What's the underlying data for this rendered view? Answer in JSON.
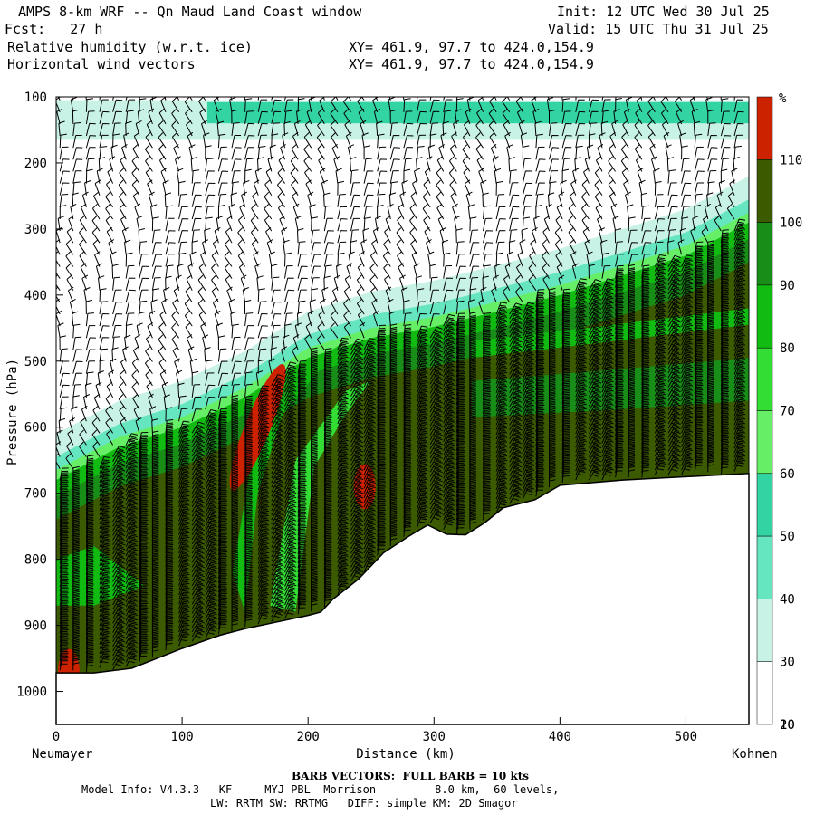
{
  "header": {
    "title": "AMPS 8-km WRF -- Qn Maud Land Coast window",
    "init": "Init: 12 UTC Wed 30 Jul 25",
    "fcst": "Fcst:   27 h",
    "valid": "Valid: 15 UTC Thu 31 Jul 25",
    "field1": "Relative humidity (w.r.t. ice)",
    "field2": "Horizontal wind vectors",
    "xy1": "XY= 461.9, 97.7 to 424.0,154.9",
    "xy2": "XY= 461.9, 97.7 to 424.0,154.9"
  },
  "chart_data": {
    "type": "heatmap",
    "xlabel": "Distance (km)",
    "ylabel": "Pressure (hPa)",
    "xlim": [
      0,
      550
    ],
    "ylim": [
      1050,
      100
    ],
    "x_ticks": [
      0,
      100,
      200,
      300,
      400,
      500
    ],
    "y_ticks": [
      100,
      200,
      300,
      400,
      500,
      600,
      700,
      800,
      900,
      1000
    ],
    "left_endpoint": "Neumayer",
    "right_endpoint": "Kohnen",
    "colorbar": {
      "unit": "%",
      "ticks": [
        10,
        20,
        30,
        40,
        50,
        60,
        70,
        80,
        90,
        100,
        110
      ],
      "bins": [
        {
          "from": 0,
          "to": 30,
          "color": "#ffffff"
        },
        {
          "from": 30,
          "to": 40,
          "color": "#c8f2e6"
        },
        {
          "from": 40,
          "to": 50,
          "color": "#66e6c0"
        },
        {
          "from": 50,
          "to": 60,
          "color": "#33d4a4"
        },
        {
          "from": 60,
          "to": 70,
          "color": "#66ee66"
        },
        {
          "from": 70,
          "to": 80,
          "color": "#33dd33"
        },
        {
          "from": 80,
          "to": 90,
          "color": "#11bb11"
        },
        {
          "from": 90,
          "to": 100,
          "color": "#188e18"
        },
        {
          "from": 100,
          "to": 110,
          "color": "#3c5a00"
        },
        {
          "from": 110,
          "to": 120,
          "color": "#cc2200"
        }
      ]
    },
    "terrain_surface_hPa": [
      {
        "x": 0,
        "p": 972
      },
      {
        "x": 30,
        "p": 972
      },
      {
        "x": 60,
        "p": 965
      },
      {
        "x": 100,
        "p": 935
      },
      {
        "x": 130,
        "p": 915
      },
      {
        "x": 150,
        "p": 905
      },
      {
        "x": 175,
        "p": 895
      },
      {
        "x": 200,
        "p": 885
      },
      {
        "x": 210,
        "p": 880
      },
      {
        "x": 220,
        "p": 860
      },
      {
        "x": 240,
        "p": 830
      },
      {
        "x": 260,
        "p": 790
      },
      {
        "x": 280,
        "p": 765
      },
      {
        "x": 295,
        "p": 748
      },
      {
        "x": 310,
        "p": 762
      },
      {
        "x": 325,
        "p": 763
      },
      {
        "x": 340,
        "p": 745
      },
      {
        "x": 355,
        "p": 722
      },
      {
        "x": 380,
        "p": 710
      },
      {
        "x": 400,
        "p": 688
      },
      {
        "x": 450,
        "p": 680
      },
      {
        "x": 550,
        "p": 670
      }
    ],
    "moist_layer_top_hPa": [
      {
        "x": 0,
        "p": 680
      },
      {
        "x": 50,
        "p": 630
      },
      {
        "x": 100,
        "p": 600
      },
      {
        "x": 150,
        "p": 555
      },
      {
        "x": 200,
        "p": 495
      },
      {
        "x": 250,
        "p": 465
      },
      {
        "x": 300,
        "p": 448
      },
      {
        "x": 350,
        "p": 425
      },
      {
        "x": 400,
        "p": 400
      },
      {
        "x": 450,
        "p": 370
      },
      {
        "x": 500,
        "p": 340
      },
      {
        "x": 550,
        "p": 290
      }
    ],
    "upper_moist_band_hPa": {
      "top": 105,
      "bottom": 165
    },
    "rh_maxima": [
      {
        "x": 160,
        "p": 600,
        "label": "110+"
      },
      {
        "x": 245,
        "p": 690,
        "label": "110+"
      },
      {
        "x": 10,
        "p": 970,
        "label": "110+"
      }
    ]
  },
  "footer": {
    "barb_note": "BARB VECTORS:  FULL BARB = 10 kts",
    "model_line": "Model Info: V4.3.3   KF     MYJ PBL  Morrison         8.0 km,  60 levels,",
    "physics_line": "LW: RRTM SW: RRTMG   DIFF: simple KM: 2D Smagor"
  },
  "icons": {
    "wind_barbs": "wind-barb-icon"
  },
  "colors": {
    "terrain": "#000000",
    "background": "#ffffff"
  }
}
